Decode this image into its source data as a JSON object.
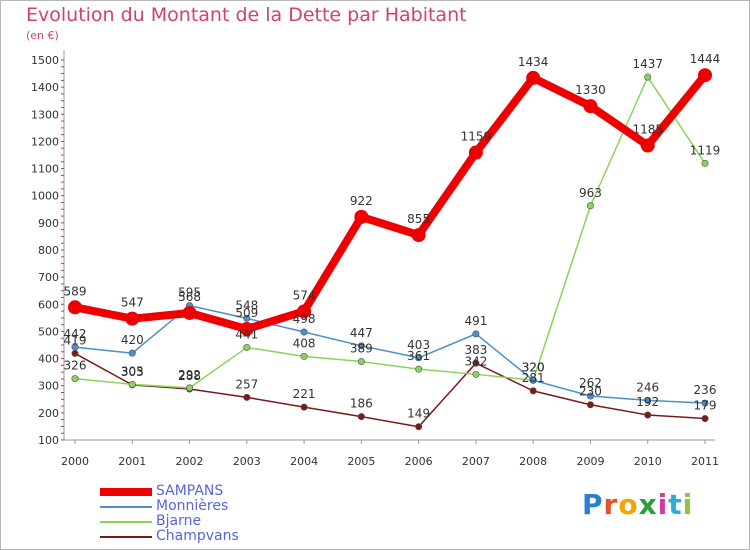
{
  "title": "Evolution du Montant de la Dette par Habitant",
  "unit": "(en €)",
  "logo": {
    "text": "Proxiti",
    "colors": [
      "#2a7fd4",
      "#e94f2a",
      "#f0a500",
      "#2a9d3a",
      "#d43aa0",
      "#2ab0d4",
      "#8ac440"
    ]
  },
  "chart_data": {
    "type": "line",
    "title": "Evolution du Montant de la Dette par Habitant",
    "ylabel": "(en €)",
    "xlabel": "",
    "x": [
      "2000",
      "2001",
      "2002",
      "2003",
      "2004",
      "2005",
      "2006",
      "2007",
      "2008",
      "2009",
      "2010",
      "2011"
    ],
    "ylim": [
      100,
      1500
    ],
    "yticks": [
      "100",
      "200",
      "300",
      "400",
      "500",
      "600",
      "700",
      "800",
      "900",
      "1000",
      "1100",
      "1200",
      "1300",
      "1400",
      "1500"
    ],
    "grid": false,
    "legend": "bottom-left",
    "series": [
      {
        "name": "SAMPANS",
        "color": "#ee0000",
        "values": [
          589,
          547,
          568,
          509,
          574,
          922,
          855,
          1159,
          1434,
          1330,
          1185,
          1444
        ]
      },
      {
        "name": "Monnières",
        "color": "#4a90cc",
        "values": [
          442,
          420,
          595,
          548,
          498,
          447,
          403,
          491,
          320,
          262,
          246,
          236
        ]
      },
      {
        "name": "Bjarne",
        "color": "#8ad45a",
        "values": [
          326,
          305,
          292,
          441,
          408,
          389,
          361,
          342,
          320,
          963,
          1437,
          1119
        ]
      },
      {
        "name": "Champvans",
        "color": "#7a1a1a",
        "values": [
          419,
          303,
          288,
          257,
          221,
          186,
          149,
          383,
          281,
          230,
          192,
          179
        ]
      }
    ]
  }
}
